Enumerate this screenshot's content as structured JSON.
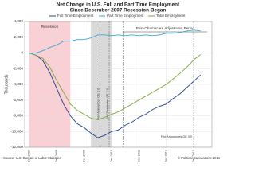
{
  "chart_data": {
    "type": "line",
    "title": "Net Change in U.S. Full and Part Time Employment",
    "subtitle": "Since December 2007 Recession Began",
    "ylabel": "Thousands",
    "source": "Source: U.S. Bureau of Labor Statistics",
    "credit": "© Political Calculations 2014",
    "x": [
      0,
      3,
      6,
      9,
      12,
      15,
      18,
      21,
      24,
      27,
      30,
      33,
      36,
      39,
      42,
      45,
      48,
      51,
      54,
      57,
      60,
      63,
      66,
      69,
      72,
      75
    ],
    "series": [
      {
        "name": "Full Time Employment",
        "color": "#1f3f8f",
        "values": [
          0,
          -300,
          -1000,
          -2500,
          -4500,
          -6500,
          -8000,
          -9000,
          -9500,
          -10200,
          -10800,
          -10500,
          -10000,
          -9800,
          -9200,
          -8800,
          -8200,
          -7800,
          -7200,
          -6800,
          -6500,
          -5800,
          -5200,
          -4400,
          -3600,
          -2800
        ]
      },
      {
        "name": "Part Time Employment",
        "color": "#3aa6dd",
        "values": [
          0,
          0,
          300,
          700,
          1000,
          1500,
          1500,
          1700,
          1700,
          1900,
          2300,
          2300,
          2200,
          2300,
          2200,
          2300,
          2200,
          2300,
          2200,
          2300,
          2500,
          2500,
          2600,
          2800,
          2900,
          2800
        ]
      },
      {
        "name": "Total Employment",
        "color": "#7aa83a",
        "values": [
          0,
          -300,
          -700,
          -1800,
          -3500,
          -5000,
          -6500,
          -7300,
          -7800,
          -8300,
          -8500,
          -8200,
          -7800,
          -7500,
          -7000,
          -6500,
          -6000,
          -5500,
          -5000,
          -4500,
          -4000,
          -3300,
          -2600,
          -1800,
          -900,
          -200
        ]
      }
    ],
    "xlim": [
      -2,
      80
    ],
    "xticks": [
      {
        "value": 0,
        "label": "Dec 2007"
      },
      {
        "value": 12,
        "label": "Dec 2008"
      },
      {
        "value": 24,
        "label": "Dec 2009"
      },
      {
        "value": 36,
        "label": "Dec 2010"
      },
      {
        "value": 48,
        "label": "Dec 2011"
      },
      {
        "value": 60,
        "label": "Dec 2012"
      },
      {
        "value": 72,
        "label": "Dec 2013"
      }
    ],
    "ylim": [
      -12000,
      4000
    ],
    "yticks": [
      {
        "value": 4000,
        "label": "4,000"
      },
      {
        "value": 2000,
        "label": "2,000"
      },
      0,
      {
        "value": -2000,
        "label": "-2,000"
      },
      {
        "value": -4000,
        "label": "-4,000"
      },
      {
        "value": -6000,
        "label": "-6,000"
      },
      {
        "value": -8000,
        "label": "-8,000"
      },
      {
        "value": -10000,
        "label": "-10,000"
      },
      {
        "value": -12000,
        "label": "-12,000"
      }
    ],
    "grid": true,
    "regions": [
      {
        "label": "Recession",
        "start": 0,
        "end": 18,
        "color": "#f8c4c8"
      },
      {
        "start": 27,
        "end": 36,
        "color": "#cfcfcf"
      }
    ],
    "span": {
      "label": "Post-Obamacare Adjustment Period",
      "start": 41,
      "end": 78
    },
    "events": [
      {
        "label": "Fed Announces QE 2.0",
        "x": 31
      },
      {
        "label": "Fed Terminates QE 2.0",
        "x": 35
      },
      {
        "label": "Fed Announces QE 3.0",
        "x": 72
      }
    ]
  }
}
